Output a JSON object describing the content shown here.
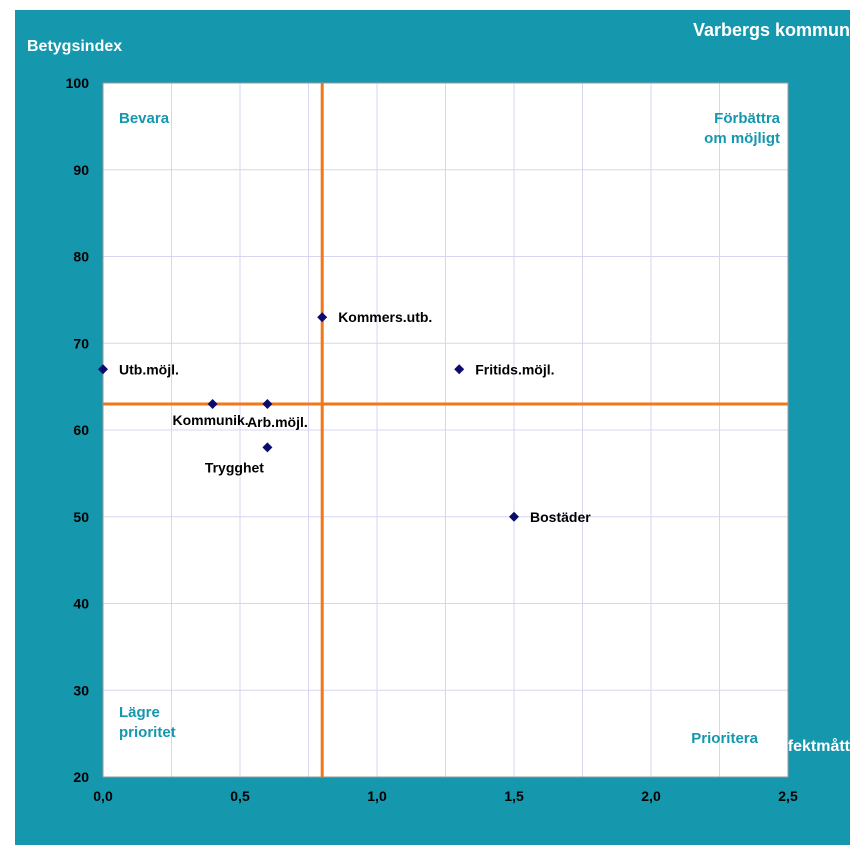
{
  "chart_data": {
    "type": "scatter",
    "title": "Varbergs kommun",
    "xlabel": "Effektmått",
    "ylabel": "Betygsindex",
    "xlim": [
      0,
      2.5
    ],
    "ylim": [
      20,
      100
    ],
    "x_ticks": [
      "0,0",
      "0,5",
      "1,0",
      "1,5",
      "2,0",
      "2,5"
    ],
    "x_tick_values": [
      0,
      0.5,
      1,
      1.5,
      2,
      2.5
    ],
    "y_ticks": [
      "20",
      "30",
      "40",
      "50",
      "60",
      "70",
      "80",
      "90",
      "100"
    ],
    "y_tick_values": [
      20,
      30,
      40,
      50,
      60,
      70,
      80,
      90,
      100
    ],
    "grid": true,
    "reference_lines": {
      "x": 0.8,
      "y": 63
    },
    "points": [
      {
        "label": "Kommers.utb.",
        "x": 0.8,
        "y": 73
      },
      {
        "label": "Utb.möjl.",
        "x": 0.0,
        "y": 67
      },
      {
        "label": "Fritids.möjl.",
        "x": 1.3,
        "y": 67
      },
      {
        "label": "Kommunik.",
        "x": 0.4,
        "y": 63
      },
      {
        "label": "Arb.möjl.",
        "x": 0.6,
        "y": 63
      },
      {
        "label": "Trygghet",
        "x": 0.6,
        "y": 58
      },
      {
        "label": "Bostäder",
        "x": 1.5,
        "y": 50
      }
    ],
    "quadrant_labels": [
      {
        "lines": [
          "Bevara"
        ],
        "position": "top-left"
      },
      {
        "lines": [
          "Förbättra",
          "om möjligt"
        ],
        "position": "top-right"
      },
      {
        "lines": [
          "Lägre",
          "prioritet"
        ],
        "position": "bottom-left"
      },
      {
        "lines": [
          "Prioritera"
        ],
        "position": "bottom-right"
      }
    ]
  },
  "colors": {
    "frame": "#1597ae",
    "reference_line": "#f07818",
    "marker": "#0c0c6e",
    "grid": "#d6d6f0",
    "quadrant_text": "#1597ae"
  }
}
